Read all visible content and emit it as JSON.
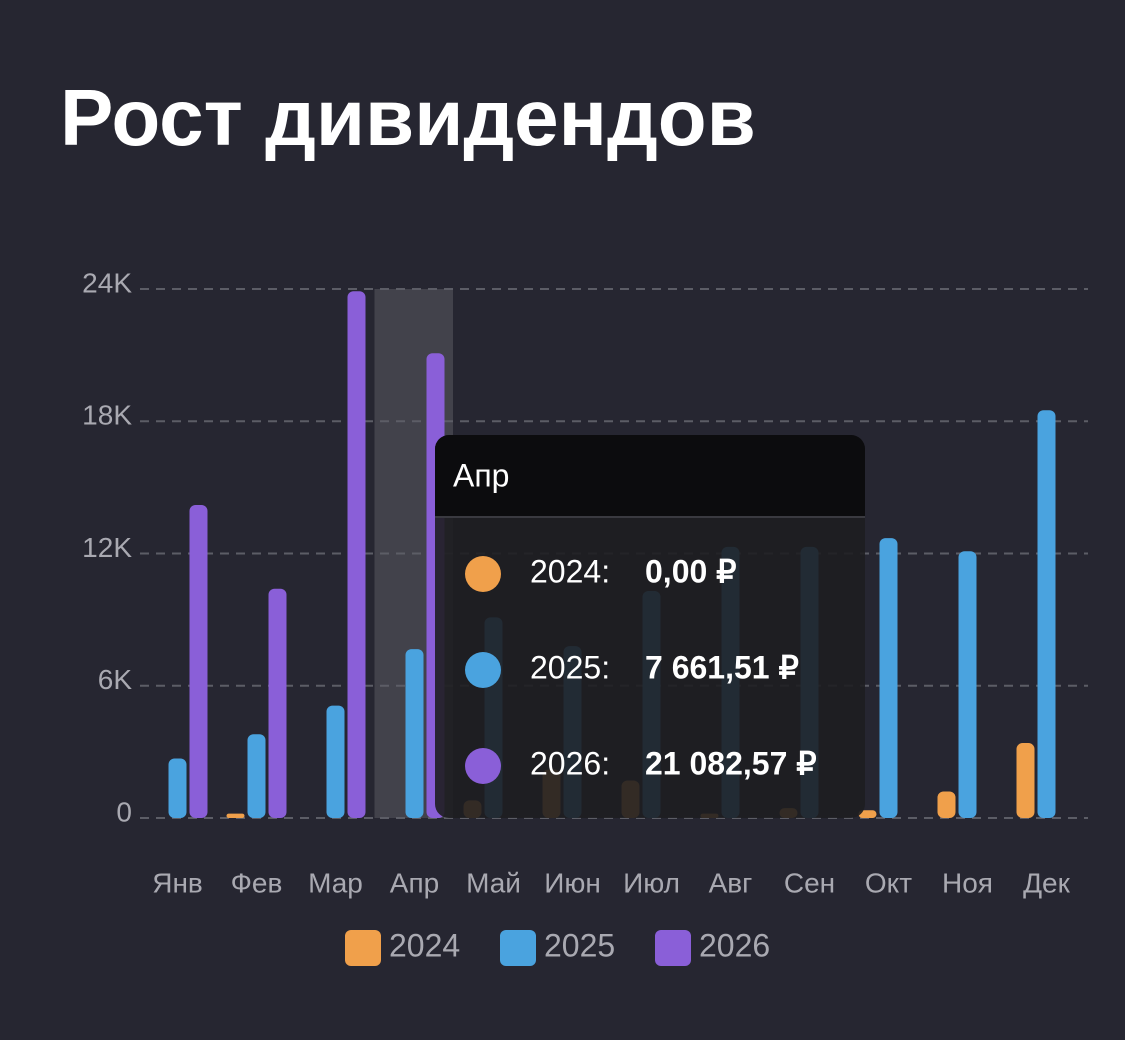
{
  "chart_data": {
    "type": "bar",
    "title": "Рост дивидендов",
    "categories": [
      "Янв",
      "Фев",
      "Мар",
      "Апр",
      "Май",
      "Июн",
      "Июл",
      "Авг",
      "Сен",
      "Окт",
      "Ноя",
      "Дек"
    ],
    "series": [
      {
        "name": "2024",
        "color": "#f0a04b",
        "values": [
          0,
          200,
          0,
          0,
          800,
          2200,
          1700,
          200,
          450,
          350,
          1200,
          3400
        ]
      },
      {
        "name": "2025",
        "color": "#4aa3df",
        "values": [
          2700,
          3800,
          5100,
          7661.51,
          9100,
          7800,
          10300,
          12300,
          12300,
          12700,
          12100,
          18500
        ]
      },
      {
        "name": "2026",
        "color": "#8a5fd8",
        "values": [
          14200,
          10400,
          23900,
          21082.57,
          0,
          0,
          0,
          0,
          0,
          0,
          0,
          0
        ]
      }
    ],
    "ylim": [
      0,
      24000
    ],
    "yticks": [
      0,
      {
        "value": 6000,
        "label": "6K"
      },
      {
        "value": 12000,
        "label": "12K"
      },
      {
        "value": 18000,
        "label": "18K"
      },
      {
        "value": 24000,
        "label": "24K"
      }
    ],
    "grid": true,
    "legend": "bottom",
    "tooltip": {
      "category": "Апр",
      "items": [
        {
          "label": "2024:",
          "value": "0,00 ₽"
        },
        {
          "label": "2025:",
          "value": "7 661,51 ₽"
        },
        {
          "label": "2026:",
          "value": "21 082,57 ₽"
        }
      ]
    }
  }
}
